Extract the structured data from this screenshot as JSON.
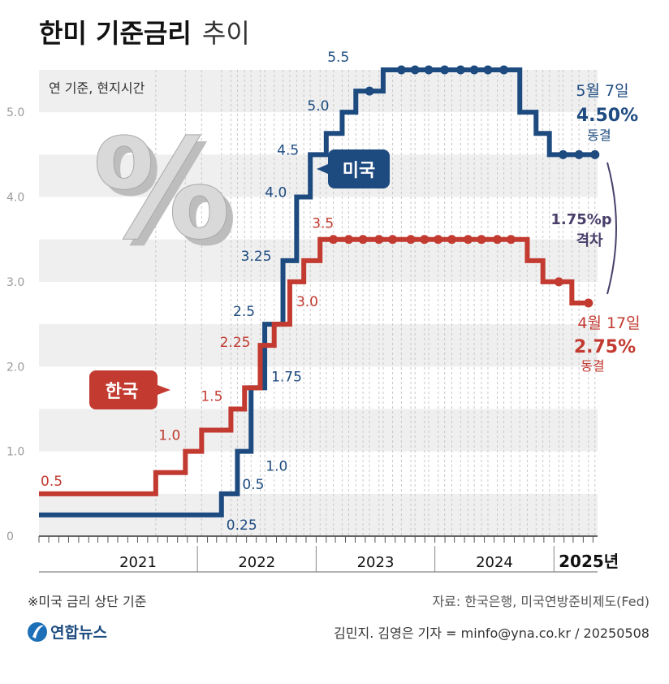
{
  "title": {
    "bold": "한미 기준금리",
    "light": "추이"
  },
  "unit_note": "연 기준, 현지시간",
  "percent_symbol": "%",
  "chart_data": {
    "type": "line",
    "step": true,
    "ylim": [
      0,
      5.5
    ],
    "yticks": [
      "0",
      "1.0",
      "2.0",
      "3.0",
      "4.0",
      "5.0"
    ],
    "xlim": [
      "2020-09-01",
      "2025-05-15"
    ],
    "years": [
      {
        "label": "2021",
        "start": "2021-01-01"
      },
      {
        "label": "2022",
        "start": "2022-01-01"
      },
      {
        "label": "2023",
        "start": "2023-01-01"
      },
      {
        "label": "2024",
        "start": "2024-01-01"
      },
      {
        "label": "2025년",
        "start": "2025-01-01"
      }
    ],
    "series": [
      {
        "name": "미국",
        "color": "#1d4b80",
        "points": [
          [
            "2020-09-01",
            0.25
          ],
          [
            "2022-03-16",
            0.5
          ],
          [
            "2022-05-04",
            1.0
          ],
          [
            "2022-06-15",
            1.75
          ],
          [
            "2022-07-27",
            2.5
          ],
          [
            "2022-09-21",
            3.25
          ],
          [
            "2022-11-02",
            4.0
          ],
          [
            "2022-12-14",
            4.5
          ],
          [
            "2023-02-01",
            4.75
          ],
          [
            "2023-03-22",
            5.0
          ],
          [
            "2023-05-03",
            5.25
          ],
          [
            "2023-07-26",
            5.5
          ],
          [
            "2024-09-18",
            5.0
          ],
          [
            "2024-11-07",
            4.75
          ],
          [
            "2024-12-18",
            4.5
          ],
          [
            "2025-05-07",
            4.5
          ]
        ],
        "dots": [
          "2023-06-14",
          "2023-09-20",
          "2023-11-01",
          "2023-12-13",
          "2024-01-31",
          "2024-03-20",
          "2024-05-01",
          "2024-06-12",
          "2024-07-31",
          "2025-01-29",
          "2025-03-19",
          "2025-05-07"
        ],
        "labels": [
          {
            "text": "0.25",
            "x": "2022-03-16",
            "y": 0.25
          },
          {
            "text": "0.5",
            "x": "2022-05-04",
            "y": 0.5
          },
          {
            "text": "1.0",
            "x": "2022-06-15",
            "y": 1.0
          },
          {
            "text": "1.75",
            "x": "2022-07-27",
            "y": 1.75
          },
          {
            "text": "2.5",
            "x": "2022-07-27",
            "y": 2.5
          },
          {
            "text": "3.25",
            "x": "2022-09-21",
            "y": 3.25
          },
          {
            "text": "4.0",
            "x": "2022-11-02",
            "y": 4.0
          },
          {
            "text": "4.5",
            "x": "2022-12-14",
            "y": 4.5
          },
          {
            "text": "5.0",
            "x": "2023-03-22",
            "y": 5.0
          },
          {
            "text": "5.5",
            "x": "2023-05-03",
            "y": 5.5
          }
        ],
        "end_note": {
          "date": "5월 7일",
          "value": "4.50%",
          "status": "동결"
        }
      },
      {
        "name": "한국",
        "color": "#c23a30",
        "points": [
          [
            "2020-09-01",
            0.5
          ],
          [
            "2021-08-26",
            0.75
          ],
          [
            "2021-11-25",
            1.0
          ],
          [
            "2022-01-14",
            1.25
          ],
          [
            "2022-04-14",
            1.5
          ],
          [
            "2022-05-26",
            1.75
          ],
          [
            "2022-07-13",
            2.25
          ],
          [
            "2022-08-25",
            2.5
          ],
          [
            "2022-10-12",
            3.0
          ],
          [
            "2022-11-24",
            3.25
          ],
          [
            "2023-01-13",
            3.5
          ],
          [
            "2024-10-11",
            3.25
          ],
          [
            "2024-11-28",
            3.0
          ],
          [
            "2025-02-25",
            2.75
          ],
          [
            "2025-04-17",
            2.75
          ]
        ],
        "dots": [
          "2023-02-23",
          "2023-04-11",
          "2023-05-25",
          "2023-07-13",
          "2023-08-24",
          "2023-10-19",
          "2023-11-30",
          "2024-01-11",
          "2024-02-22",
          "2024-04-12",
          "2024-05-23",
          "2024-07-11",
          "2024-08-22",
          "2025-01-16",
          "2025-04-17"
        ],
        "labels": [
          {
            "text": "0.5",
            "x": "2020-09-01",
            "y": 0.5
          },
          {
            "text": "1.0",
            "x": "2021-11-25",
            "y": 1.0
          },
          {
            "text": "1.5",
            "x": "2022-04-14",
            "y": 1.5
          },
          {
            "text": "2.25",
            "x": "2022-07-13",
            "y": 2.25
          },
          {
            "text": "3.0",
            "x": "2022-10-12",
            "y": 3.0
          },
          {
            "text": "3.5",
            "x": "2023-01-13",
            "y": 3.5
          }
        ],
        "end_note": {
          "date": "4월 17일",
          "value": "2.75%",
          "status": "동결"
        }
      }
    ],
    "gap": {
      "value": "1.75%p",
      "label": "격차"
    }
  },
  "footnote": "※미국 금리 상단 기준",
  "source": "자료: 한국은행, 미국연방준비제도(Fed)",
  "logo": "연합뉴스",
  "credit": "김민지. 김영은 기자 = minfo@yna.co.kr / 20250508"
}
